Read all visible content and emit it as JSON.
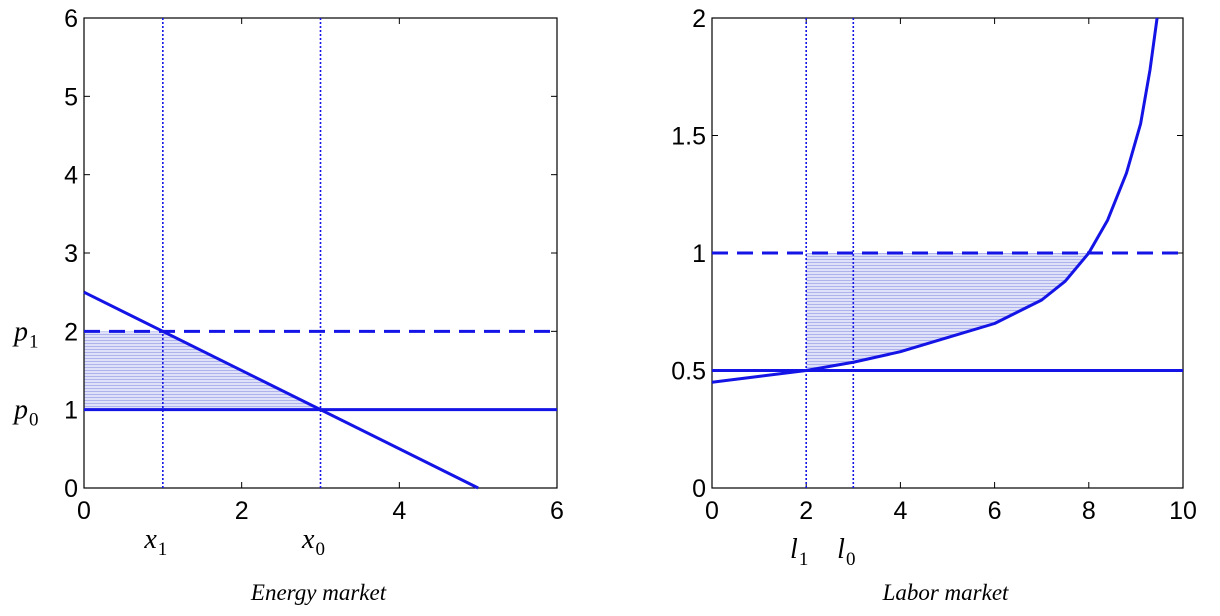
{
  "chart_data": [
    {
      "type": "line",
      "title": "",
      "caption": "Energy market",
      "xlim": [
        0,
        6
      ],
      "ylim": [
        0,
        6
      ],
      "x_ticks": [
        "0",
        "2",
        "4",
        "6"
      ],
      "y_ticks": [
        "0",
        "1",
        "2",
        "3",
        "4",
        "5",
        "6"
      ],
      "grid": false,
      "curve": {
        "x": [
          0,
          5
        ],
        "y": [
          2.5,
          0
        ]
      },
      "hlines": [
        {
          "y": 2,
          "style": "dashed",
          "label": "p",
          "sub": "1"
        },
        {
          "y": 1,
          "style": "solid",
          "label": "p",
          "sub": "0"
        }
      ],
      "vlines": [
        {
          "x": 1,
          "style": "dotted",
          "label": "x",
          "sub": "1"
        },
        {
          "x": 3,
          "style": "dotted",
          "label": "x",
          "sub": "0"
        }
      ],
      "shaded_region": {
        "x_from": 0,
        "x_to": 3,
        "y_lower": 1,
        "y_upper": 2
      },
      "color": "#1414e6",
      "shade_color": "#b8bcef"
    },
    {
      "type": "line",
      "title": "",
      "caption": "Labor market",
      "xlim": [
        0,
        10
      ],
      "ylim": [
        0,
        2
      ],
      "x_ticks": [
        "0",
        "2",
        "4",
        "6",
        "8",
        "10"
      ],
      "y_ticks": [
        "0",
        "0.5",
        "1",
        "1.5",
        "2"
      ],
      "grid": false,
      "curve": {
        "x": [
          0,
          1,
          2,
          3,
          4,
          5,
          6,
          6.6,
          7,
          7.5,
          8,
          8.4,
          8.8,
          9.1,
          9.3,
          9.45
        ],
        "y": [
          0.45,
          0.475,
          0.5,
          0.535,
          0.58,
          0.64,
          0.7,
          0.76,
          0.8,
          0.88,
          1.0,
          1.14,
          1.34,
          1.55,
          1.78,
          2.0
        ]
      },
      "hlines": [
        {
          "y": 1,
          "style": "dashed"
        },
        {
          "y": 0.5,
          "style": "solid"
        }
      ],
      "vlines": [
        {
          "x": 2,
          "style": "dotted",
          "label": "l",
          "sub": "1"
        },
        {
          "x": 3,
          "style": "dotted",
          "label": "l",
          "sub": "0"
        }
      ],
      "shaded_region": {
        "x_from": 2,
        "x_to": 8,
        "y_upper": 1,
        "lower": "curve"
      },
      "color": "#1414e6",
      "shade_color": "#b8bcef"
    }
  ]
}
